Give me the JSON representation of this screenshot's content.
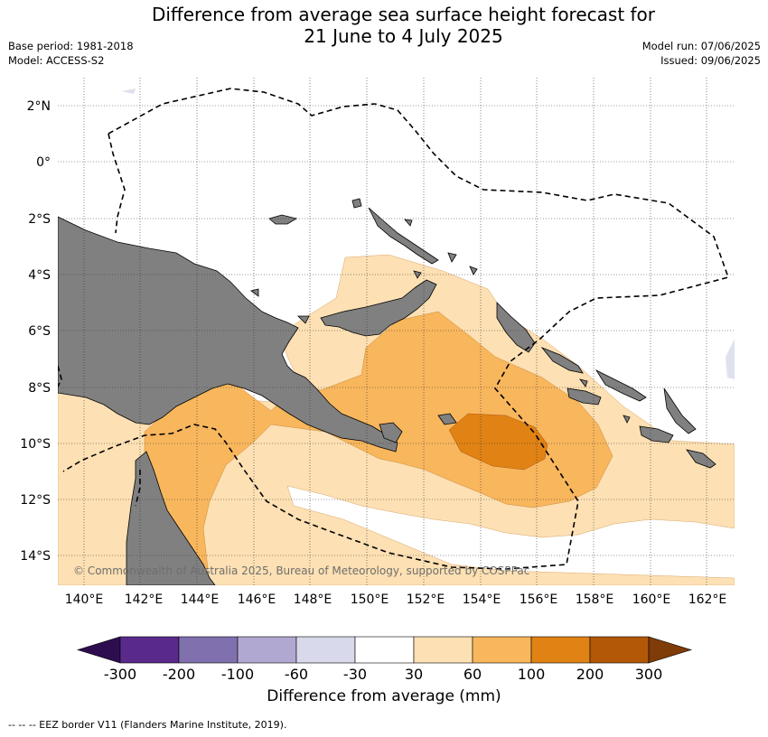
{
  "header": {
    "title_line1": "Difference from average sea surface height forecast for",
    "title_line2": "21 June to 4 July 2025",
    "base_period": "Base period: 1981-2018",
    "model": "Model: ACCESS-S2",
    "model_run": "Model run: 07/06/2025",
    "issued": "Issued: 09/06/2025"
  },
  "map": {
    "lon_labels": [
      "140°E",
      "142°E",
      "144°E",
      "146°E",
      "148°E",
      "150°E",
      "152°E",
      "154°E",
      "156°E",
      "158°E",
      "160°E",
      "162°E"
    ],
    "lat_labels": [
      "2°N",
      "0°",
      "2°S",
      "4°S",
      "6°S",
      "8°S",
      "10°S",
      "12°S",
      "14°S"
    ],
    "land_color": "#808080",
    "copyright": "© Commonwealth of Australia 2025, Bureau of Meteorology, supported by COSPPac"
  },
  "colorbar": {
    "ticks": [
      "-300",
      "-200",
      "-100",
      "-60",
      "-30",
      "30",
      "60",
      "100",
      "200",
      "300"
    ],
    "colors": [
      "#2d0d4f",
      "#5a2a8a",
      "#8070ae",
      "#b1a8d2",
      "#d8d9ea",
      "#ffffff",
      "#fde0b3",
      "#f8b65d",
      "#e08214",
      "#b35806",
      "#7f3b08"
    ],
    "label": "Difference from average (mm)"
  },
  "footnote": "--  --  -- EEZ border V11 (Flanders Marine Institute, 2019)."
}
